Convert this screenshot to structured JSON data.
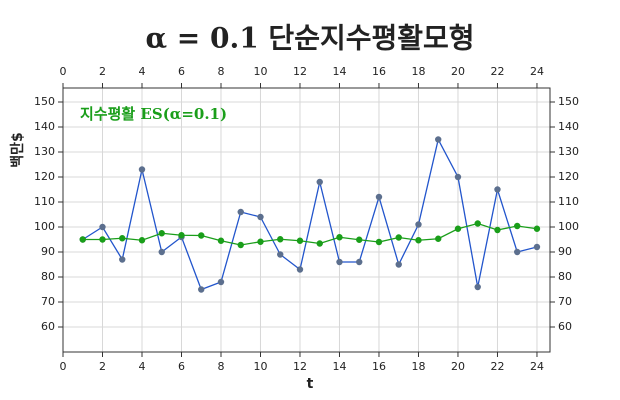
{
  "chart_data": {
    "type": "line",
    "title": "α = 0.1 단순지수평활모형",
    "x_label": "t",
    "y_label": "백만$",
    "x": [
      1,
      2,
      3,
      4,
      5,
      6,
      7,
      8,
      9,
      10,
      11,
      12,
      13,
      14,
      15,
      16,
      17,
      18,
      19,
      20,
      21,
      22,
      23,
      24
    ],
    "series": [
      {
        "color": "#2255cc",
        "marker_color": "#5c6f8e",
        "values": [
          95,
          100,
          87,
          123,
          90,
          96,
          75,
          78,
          106,
          104,
          89,
          83,
          118,
          86,
          86,
          112,
          85,
          101,
          135,
          120,
          76,
          115,
          90,
          92
        ]
      },
      {
        "name": "지수평활 ES(α=0.1)",
        "color": "#1a9e1a",
        "marker_color": "#1a9e1a",
        "values": [
          95,
          95,
          95.5,
          94.7,
          97.5,
          96.7,
          96.6,
          94.5,
          92.8,
          94.1,
          95.1,
          94.5,
          93.4,
          95.9,
          94.9,
          94.0,
          95.8,
          94.7,
          95.3,
          99.3,
          101.4,
          98.8,
          100.4,
          99.3
        ]
      }
    ],
    "xlim": [
      0,
      24.66
    ],
    "ylim": [
      50,
      155.6
    ],
    "xticks": [
      0,
      2,
      4,
      6,
      8,
      10,
      12,
      14,
      16,
      18,
      20,
      22,
      24
    ],
    "yticks": [
      60,
      70,
      80,
      90,
      100,
      110,
      120,
      130,
      140,
      150
    ],
    "grid": true
  }
}
